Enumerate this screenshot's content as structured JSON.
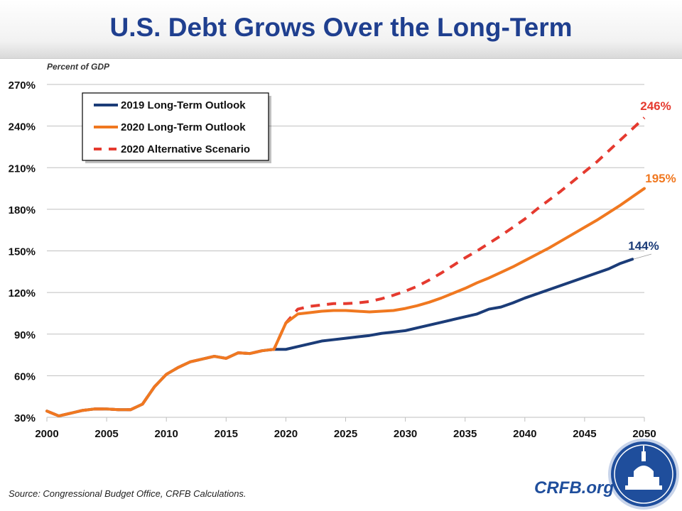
{
  "header": {
    "title": "U.S. Debt Grows Over the Long-Term"
  },
  "footer": {
    "source": "Source: Congressional Budget Office, CRFB Calculations.",
    "brand": "CRFB.org"
  },
  "chart_data": {
    "type": "line",
    "title": "U.S. Debt Grows Over the Long-Term",
    "ylabel": "Percent of GDP",
    "xlabel": "",
    "xlim": [
      2000,
      2050
    ],
    "ylim": [
      30,
      270
    ],
    "xticks": [
      "2000",
      "2005",
      "2010",
      "2015",
      "2020",
      "2025",
      "2030",
      "2035",
      "2040",
      "2045",
      "2050"
    ],
    "yticks": [
      "30%",
      "60%",
      "90%",
      "120%",
      "150%",
      "180%",
      "210%",
      "240%",
      "270%"
    ],
    "grid": true,
    "legend": "top-left",
    "series": [
      {
        "name": "2019 Long-Term Outlook",
        "color": "#1b3c78",
        "dash": false,
        "end_label": "144%",
        "x": [
          2000,
          2001,
          2002,
          2003,
          2004,
          2005,
          2006,
          2007,
          2008,
          2009,
          2010,
          2011,
          2012,
          2013,
          2014,
          2015,
          2016,
          2017,
          2018,
          2019,
          2020,
          2021,
          2022,
          2023,
          2024,
          2025,
          2026,
          2027,
          2028,
          2029,
          2030,
          2031,
          2032,
          2033,
          2034,
          2035,
          2036,
          2037,
          2038,
          2039,
          2040,
          2041,
          2042,
          2043,
          2044,
          2045,
          2046,
          2047,
          2048,
          2049
        ],
        "y": [
          34.5,
          31,
          33,
          35,
          36,
          36,
          35.5,
          35.5,
          39.5,
          52,
          61,
          66,
          70,
          72,
          74,
          72.5,
          76.5,
          76,
          78,
          79,
          79,
          81,
          83,
          85,
          86,
          87,
          88,
          89,
          90.5,
          91.5,
          92.5,
          94.5,
          96.5,
          98.5,
          100.5,
          102.5,
          104.5,
          108,
          109.5,
          112.5,
          116,
          119,
          122,
          125,
          128,
          131,
          134,
          137,
          141,
          144
        ]
      },
      {
        "name": "2020 Long-Term Outlook",
        "color": "#f07820",
        "dash": false,
        "end_label": "195%",
        "x": [
          2000,
          2001,
          2002,
          2003,
          2004,
          2005,
          2006,
          2007,
          2008,
          2009,
          2010,
          2011,
          2012,
          2013,
          2014,
          2015,
          2016,
          2017,
          2018,
          2019,
          2020,
          2021,
          2022,
          2023,
          2024,
          2025,
          2026,
          2027,
          2028,
          2029,
          2030,
          2031,
          2032,
          2033,
          2034,
          2035,
          2036,
          2037,
          2038,
          2039,
          2040,
          2041,
          2042,
          2043,
          2044,
          2045,
          2046,
          2047,
          2048,
          2049,
          2050
        ],
        "y": [
          34.5,
          31,
          33,
          35,
          36,
          36,
          35.5,
          35.5,
          39.5,
          52,
          61,
          66,
          70,
          72,
          74,
          72.5,
          76.5,
          76,
          78,
          79,
          98,
          104.5,
          105.5,
          106.5,
          107,
          107,
          106.5,
          106,
          106.5,
          107,
          108.5,
          110.5,
          113,
          116,
          119.5,
          123,
          127,
          130.5,
          134.5,
          138.5,
          143,
          147.5,
          152,
          157,
          162,
          167,
          172,
          177.5,
          183,
          189,
          195
        ]
      },
      {
        "name": "2020 Alternative Scenario",
        "color": "#e53a2f",
        "dash": true,
        "end_label": "246%",
        "x": [
          2000,
          2001,
          2002,
          2003,
          2004,
          2005,
          2006,
          2007,
          2008,
          2009,
          2010,
          2011,
          2012,
          2013,
          2014,
          2015,
          2016,
          2017,
          2018,
          2019,
          2020,
          2021,
          2022,
          2023,
          2024,
          2025,
          2026,
          2027,
          2028,
          2029,
          2030,
          2031,
          2032,
          2033,
          2034,
          2035,
          2036,
          2037,
          2038,
          2039,
          2040,
          2041,
          2042,
          2043,
          2044,
          2045,
          2046,
          2047,
          2048,
          2049,
          2050
        ],
        "y": [
          34.5,
          31,
          33,
          35,
          36,
          36,
          35.5,
          35.5,
          39.5,
          52,
          61,
          66,
          70,
          72,
          74,
          72.5,
          76.5,
          76,
          78,
          79,
          98,
          108,
          110,
          111,
          112,
          112,
          112.5,
          113.5,
          115.5,
          118,
          121,
          124.5,
          129,
          134,
          139.5,
          145,
          150,
          155.5,
          161,
          167,
          173,
          180,
          186.5,
          193,
          200,
          207,
          214,
          222,
          230,
          238,
          246
        ]
      }
    ]
  }
}
